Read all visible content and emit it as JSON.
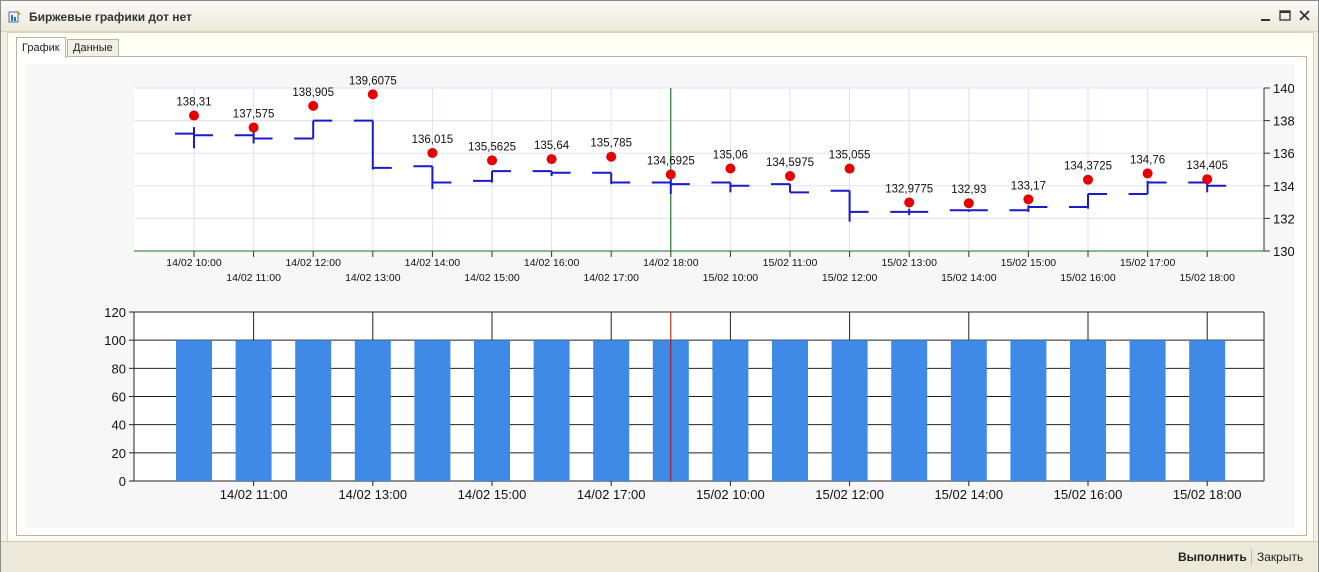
{
  "window": {
    "title": "Биржевые графики дот нет"
  },
  "tabs": [
    {
      "label": "График",
      "active": true
    },
    {
      "label": "Данные",
      "active": false
    }
  ],
  "footer": {
    "run_label": "Выполнить",
    "close_label": "Закрыть"
  },
  "chart_data": [
    {
      "type": "line",
      "title": "",
      "x": [
        "14/02 10:00",
        "14/02 11:00",
        "14/02 12:00",
        "14/02 13:00",
        "14/02 14:00",
        "14/02 15:00",
        "14/02 16:00",
        "14/02 17:00",
        "14/02 18:00",
        "15/02 10:00",
        "15/02 11:00",
        "15/02 12:00",
        "15/02 13:00",
        "15/02 14:00",
        "15/02 15:00",
        "15/02 16:00",
        "15/02 17:00",
        "15/02 18:00"
      ],
      "ylim": [
        130,
        140
      ],
      "yticks": [
        130,
        132,
        134,
        136,
        138,
        140
      ],
      "y_axis_side": "right",
      "series": [
        {
          "kind": "ohlc",
          "open": [
            137.2,
            137.1,
            136.9,
            138.0,
            135.2,
            134.3,
            134.9,
            134.8,
            134.2,
            134.2,
            134.1,
            133.7,
            132.4,
            132.5,
            132.5,
            132.7,
            133.5,
            134.2
          ],
          "high": [
            137.6,
            137.5,
            138.0,
            138.0,
            135.2,
            134.9,
            134.9,
            134.8,
            134.5,
            134.2,
            134.1,
            133.7,
            132.6,
            132.5,
            132.8,
            133.5,
            134.3,
            134.3
          ],
          "low": [
            136.3,
            136.6,
            136.9,
            135.0,
            133.8,
            134.2,
            134.6,
            134.1,
            133.5,
            133.6,
            133.6,
            131.8,
            132.2,
            132.4,
            132.4,
            132.6,
            133.5,
            133.6
          ],
          "close": [
            137.1,
            136.9,
            138.0,
            135.1,
            134.2,
            134.9,
            134.8,
            134.2,
            134.1,
            134.0,
            133.6,
            132.4,
            132.4,
            132.5,
            132.7,
            133.5,
            134.2,
            134.0
          ],
          "color": "#1a1acd"
        },
        {
          "kind": "markers",
          "values": [
            138.31,
            137.575,
            138.905,
            139.6075,
            136.015,
            135.5625,
            135.64,
            135.785,
            134.6925,
            135.06,
            134.5975,
            135.055,
            132.9775,
            132.93,
            133.17,
            134.3725,
            134.76,
            134.405
          ],
          "labels": [
            "138,31",
            "137,575",
            "138,905",
            "139,6075",
            "136,015",
            "135,5625",
            "135,64",
            "135,785",
            "134,6925",
            "135,06",
            "134,5975",
            "135,055",
            "132,9775",
            "132,93",
            "133,17",
            "134,3725",
            "134,76",
            "134,405"
          ],
          "color": "#e60000"
        }
      ],
      "cursor_x": "14/02 18:00",
      "cursor_color": "#006400",
      "grid": true
    },
    {
      "type": "bar",
      "title": "",
      "categories": [
        "14/02 10:00",
        "14/02 11:00",
        "14/02 12:00",
        "14/02 13:00",
        "14/02 14:00",
        "14/02 15:00",
        "14/02 16:00",
        "14/02 17:00",
        "14/02 18:00",
        "15/02 10:00",
        "15/02 11:00",
        "15/02 12:00",
        "15/02 13:00",
        "15/02 14:00",
        "15/02 15:00",
        "15/02 16:00",
        "15/02 17:00",
        "15/02 18:00"
      ],
      "values": [
        100,
        100,
        100,
        100,
        100,
        100,
        100,
        100,
        100,
        100,
        100,
        100,
        100,
        100,
        100,
        100,
        100,
        100
      ],
      "xtick_labels": [
        "14/02 11:00",
        "14/02 13:00",
        "14/02 15:00",
        "14/02 17:00",
        "15/02 10:00",
        "15/02 12:00",
        "15/02 14:00",
        "15/02 16:00",
        "15/02 18:00"
      ],
      "ylim": [
        0,
        120
      ],
      "yticks": [
        0,
        20,
        40,
        60,
        80,
        100,
        120
      ],
      "color": "#3e8ae6",
      "cursor_x": "14/02 18:00",
      "cursor_color": "#cc0000",
      "grid": true
    }
  ]
}
